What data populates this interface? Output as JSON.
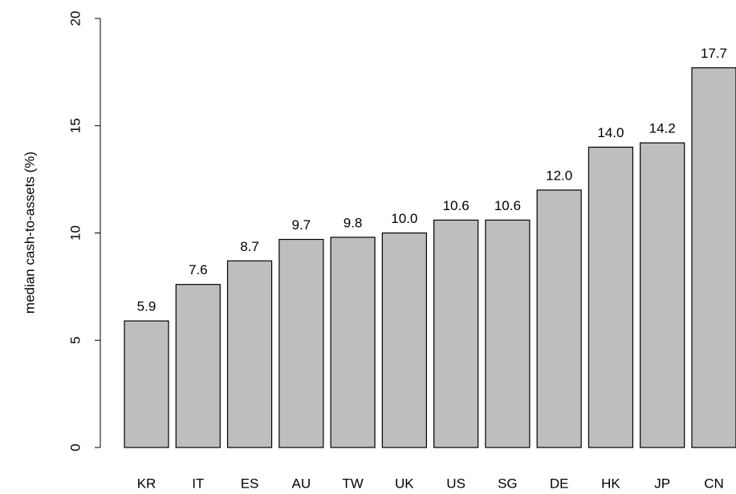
{
  "chart_data": {
    "type": "bar",
    "y_label": "median cash-to-assets (%)",
    "categories": [
      "KR",
      "IT",
      "ES",
      "AU",
      "TW",
      "UK",
      "US",
      "SG",
      "DE",
      "HK",
      "JP",
      "CN"
    ],
    "values": [
      5.9,
      7.6,
      8.7,
      9.7,
      9.8,
      10.0,
      10.6,
      10.6,
      12.0,
      14.0,
      14.2,
      17.7
    ],
    "value_labels": [
      "5.9",
      "7.6",
      "8.7",
      "9.7",
      "9.8",
      "10.0",
      "10.6",
      "10.6",
      "12.0",
      "14.0",
      "14.2",
      "17.7"
    ],
    "color": "#bebebe",
    "ylim": [
      0,
      20
    ],
    "yticks": [
      0,
      5,
      10,
      15,
      20
    ],
    "grid": false
  }
}
